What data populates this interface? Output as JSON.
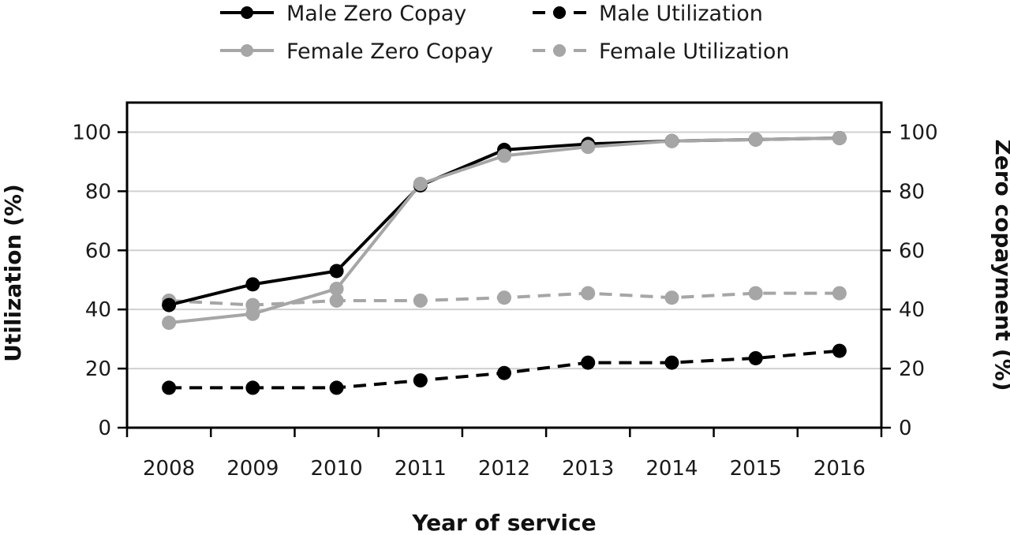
{
  "chart_data": {
    "type": "line",
    "x": [
      "2008",
      "2009",
      "2010",
      "2011",
      "2012",
      "2013",
      "2014",
      "2015",
      "2016"
    ],
    "xlabel": "Year of service",
    "ylabel": "Utilization (%)",
    "y2label": "Zero copayment (%)",
    "ylim": [
      0,
      110
    ],
    "y2lim": [
      0,
      110
    ],
    "yticks": [
      "0",
      "20",
      "40",
      "60",
      "80",
      "100"
    ],
    "y2ticks": [
      "0",
      "20",
      "40",
      "60",
      "80",
      "100"
    ],
    "grid": "horizontal",
    "legend_position": "top",
    "series": [
      {
        "name": "Male Zero Copay",
        "axis": "right",
        "color": "#000000",
        "dash": "solid",
        "values": [
          41.5,
          48.5,
          53,
          82,
          94,
          96,
          97,
          97.5,
          98
        ]
      },
      {
        "name": "Female Zero Copay",
        "axis": "right",
        "color": "#a6a6a6",
        "dash": "solid",
        "values": [
          35.5,
          38.5,
          47,
          82.5,
          92,
          95,
          97,
          97.5,
          98
        ]
      },
      {
        "name": "Male Utilization",
        "axis": "left",
        "color": "#000000",
        "dash": "dashed",
        "values": [
          13.5,
          13.5,
          13.5,
          16,
          18.5,
          22,
          22,
          23.5,
          26
        ]
      },
      {
        "name": "Female Utilization",
        "axis": "left",
        "color": "#a6a6a6",
        "dash": "dashed",
        "values": [
          43,
          41.5,
          43,
          43,
          44,
          45.5,
          44,
          45.5,
          45.5
        ]
      }
    ]
  }
}
